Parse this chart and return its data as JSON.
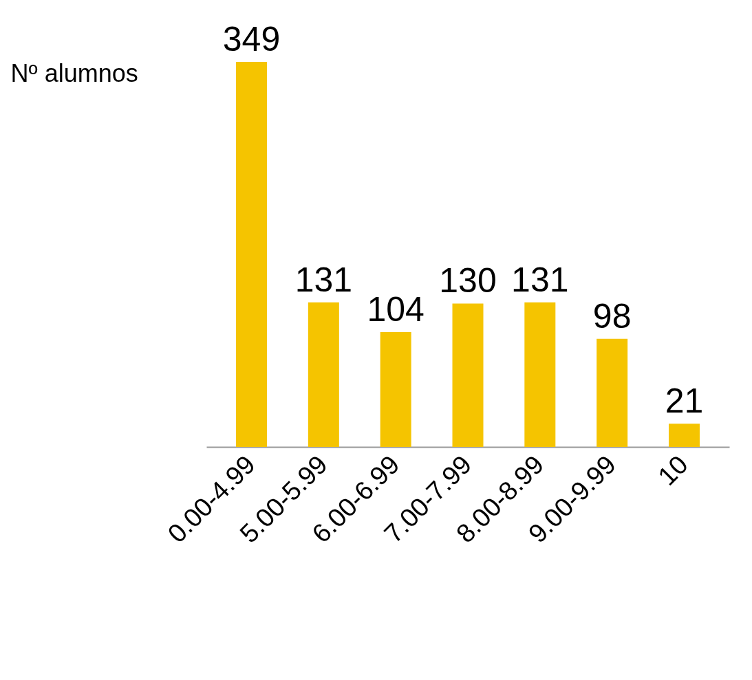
{
  "chart_data": {
    "type": "bar",
    "ylabel": "Nº alumnos",
    "categories": [
      "0.00-4.99",
      "5.00-5.99",
      "6.00-6.99",
      "7.00-7.99",
      "8.00-8.99",
      "9.00-9.99",
      "10"
    ],
    "values": [
      349,
      131,
      104,
      130,
      131,
      98,
      21
    ],
    "color": "#f5c400",
    "data_labels": true,
    "grid": false
  }
}
